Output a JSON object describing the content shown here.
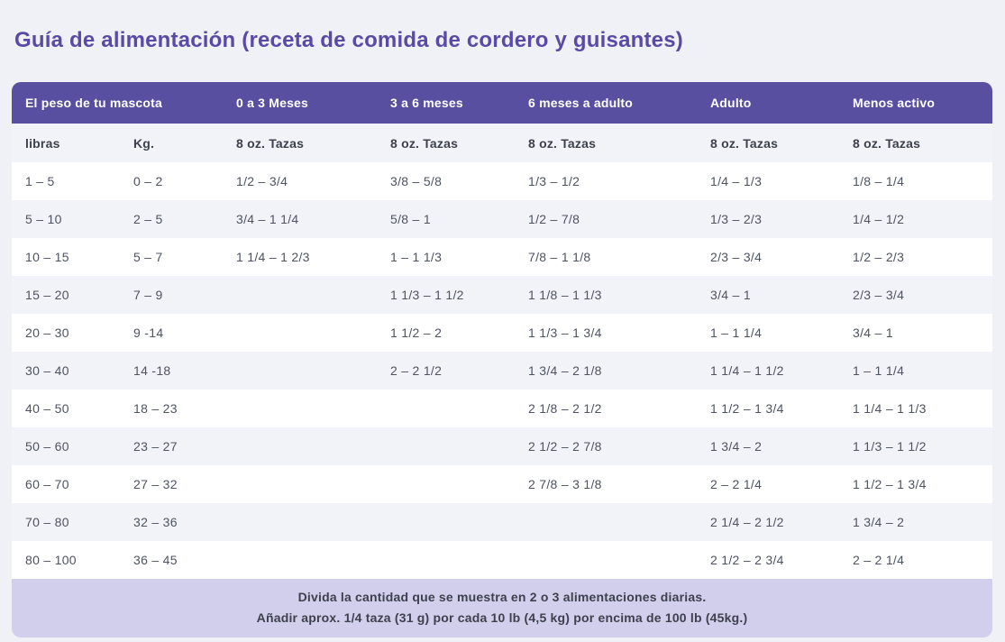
{
  "page": {
    "title": "Guía de alimentación (receta de comida de cordero y guisantes)"
  },
  "colors": {
    "accent_purple": "#594fa0",
    "title_purple": "#5a4aa6",
    "page_background": "#f0f1f6",
    "stripe_background": "#f2f3f8",
    "footer_background": "#d2cfed",
    "cell_text": "#4d5361"
  },
  "table": {
    "header_columns": [
      "El peso de tu mascota",
      "0 a 3 Meses",
      "3 a 6 meses",
      "6 meses a adulto",
      "Adulto",
      "Menos activo"
    ],
    "subheader_columns": [
      "libras",
      "Kg.",
      "8 oz. Tazas",
      "8 oz. Tazas",
      "8 oz. Tazas",
      "8 oz. Tazas",
      "8 oz. Tazas"
    ],
    "rows": [
      [
        "1 – 5",
        "0 – 2",
        "1/2 – 3/4",
        "3/8 – 5/8",
        "1/3 – 1/2",
        "1/4 – 1/3",
        "1/8 – 1/4"
      ],
      [
        "5 – 10",
        "2 – 5",
        "3/4 – 1 1/4",
        "5/8 – 1",
        "1/2 – 7/8",
        "1/3 – 2/3",
        "1/4 – 1/2"
      ],
      [
        "10 – 15",
        "5 – 7",
        "1 1/4 – 1 2/3",
        "1 – 1 1/3",
        "7/8 – 1 1/8",
        "2/3 – 3/4",
        "1/2 – 2/3"
      ],
      [
        "15 – 20",
        "7 – 9",
        "",
        "1 1/3 – 1 1/2",
        "1 1/8 – 1 1/3",
        "3/4 – 1",
        "2/3 – 3/4"
      ],
      [
        "20 – 30",
        "9 -14",
        "",
        "1 1/2 – 2",
        "1 1/3 – 1 3/4",
        "1 – 1 1/4",
        "3/4 – 1"
      ],
      [
        "30 – 40",
        "14 -18",
        "",
        "2 – 2 1/2",
        "1 3/4 – 2 1/8",
        "1 1/4 – 1 1/2",
        "1 – 1 1/4"
      ],
      [
        "40 – 50",
        "18 – 23",
        "",
        "",
        "2 1/8 – 2 1/2",
        "1 1/2 – 1 3/4",
        "1 1/4 – 1 1/3"
      ],
      [
        "50 – 60",
        "23 – 27",
        "",
        "",
        "2 1/2 – 2 7/8",
        "1 3/4 – 2",
        "1 1/3 – 1 1/2"
      ],
      [
        "60 – 70",
        "27 – 32",
        "",
        "",
        "2 7/8 – 3 1/8",
        "2 – 2 1/4",
        "1 1/2 – 1 3/4"
      ],
      [
        "70 – 80",
        "32 – 36",
        "",
        "",
        "",
        "2 1/4 – 2 1/2",
        "1 3/4 – 2"
      ],
      [
        "80 – 100",
        "36 – 45",
        "",
        "",
        "",
        "2 1/2 – 2 3/4",
        "2 – 2 1/4"
      ]
    ],
    "footer_lines": [
      "Divida la cantidad que se muestra en 2 o 3 alimentaciones diarias.",
      "Añadir aprox. 1/4 taza (31 g) por cada 10 lb (4,5 kg) por encima de 100 lb (45kg.)"
    ]
  }
}
